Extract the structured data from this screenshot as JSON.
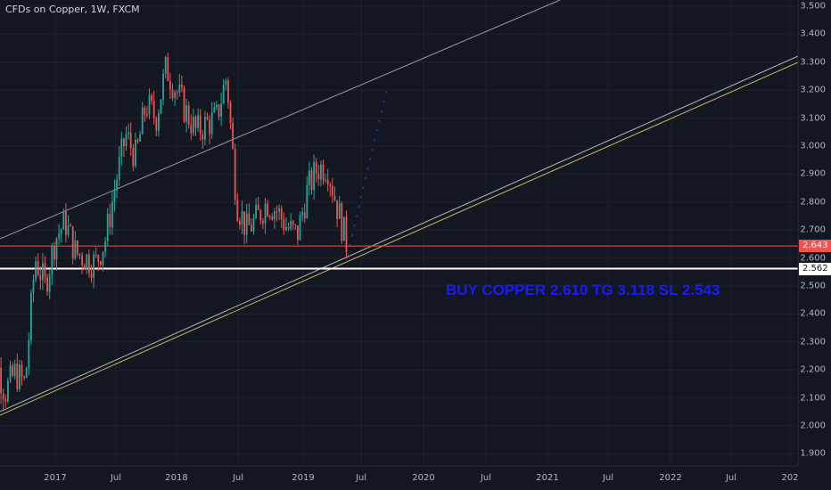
{
  "header": {
    "title": "CFDs on Copper, 1W, FXCM"
  },
  "chart_data": {
    "type": "candlestick",
    "symbol": "CFDs on Copper",
    "interval": "1W",
    "source": "FXCM",
    "ylim": [
      1.86,
      3.53
    ],
    "y_ticks": [
      "3.500",
      "3.400",
      "3.300",
      "3.200",
      "3.100",
      "3.000",
      "2.900",
      "2.800",
      "2.700",
      "2.600",
      "2.500",
      "2.400",
      "2.300",
      "2.200",
      "2.100",
      "2.000",
      "1.900"
    ],
    "x_ticks": [
      "2017",
      "Jul",
      "2018",
      "Jul",
      "2019",
      "Jul",
      "2020",
      "Jul",
      "2021",
      "Jul",
      "2022",
      "Jul",
      "202"
    ],
    "price_tags": [
      {
        "label": "2.643",
        "value": 2.643,
        "color": "#ef5350"
      },
      {
        "label": "2.562",
        "value": 2.562,
        "color": "#ffffff"
      }
    ],
    "horizontal_lines": [
      {
        "value": 2.643,
        "color": "#ef5350"
      },
      {
        "value": 2.562,
        "color": "#ffffff"
      }
    ],
    "annotation": "BUY COPPER 2.610 TG 3.118 SL 2.543",
    "close_path": [
      [
        "2016-06",
        2.2
      ],
      [
        "2016-07",
        2.25
      ],
      [
        "2016-08",
        2.12
      ],
      [
        "2016-09",
        2.19
      ],
      [
        "2016-10",
        2.15
      ],
      [
        "2016-11",
        2.6
      ],
      [
        "2016-12",
        2.5
      ],
      [
        "2017-01",
        2.67
      ],
      [
        "2017-02",
        2.73
      ],
      [
        "2017-03",
        2.62
      ],
      [
        "2017-04",
        2.6
      ],
      [
        "2017-05",
        2.58
      ],
      [
        "2017-06",
        2.67
      ],
      [
        "2017-07",
        2.87
      ],
      [
        "2017-08",
        3.04
      ],
      [
        "2017-09",
        2.96
      ],
      [
        "2017-10",
        3.15
      ],
      [
        "2017-11",
        3.1
      ],
      [
        "2017-12",
        3.28
      ],
      [
        "2018-01",
        3.2
      ],
      [
        "2018-02",
        3.12
      ],
      [
        "2018-03",
        3.05
      ],
      [
        "2018-04",
        3.08
      ],
      [
        "2018-05",
        3.1
      ],
      [
        "2018-06",
        3.25
      ],
      [
        "2018-07",
        2.8
      ],
      [
        "2018-08",
        2.7
      ],
      [
        "2018-09",
        2.74
      ],
      [
        "2018-10",
        2.8
      ],
      [
        "2018-11",
        2.77
      ],
      [
        "2018-12",
        2.71
      ],
      [
        "2019-01",
        2.68
      ],
      [
        "2019-02",
        2.84
      ],
      [
        "2019-03",
        2.92
      ],
      [
        "2019-04",
        2.93
      ],
      [
        "2019-05",
        2.78
      ],
      [
        "2019-06",
        2.64
      ]
    ],
    "projection_path": [
      [
        "2019-06",
        2.61
      ],
      [
        "2019-10",
        3.22
      ]
    ]
  }
}
